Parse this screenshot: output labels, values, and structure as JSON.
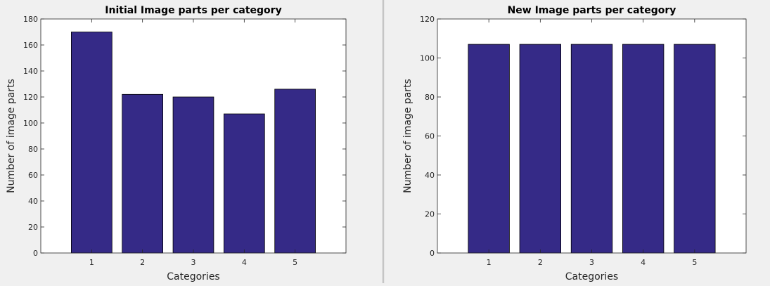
{
  "colors": {
    "bar_fill": "#352a87",
    "bar_stroke": "#000000",
    "plot_bg": "#ffffff",
    "figure_bg": "#f0f0f0"
  },
  "chart_data": [
    {
      "type": "bar",
      "title": "Initial Image parts per category",
      "xlabel": "Categories",
      "ylabel": "Number of image parts",
      "categories": [
        "1",
        "2",
        "3",
        "4",
        "5"
      ],
      "values": [
        170,
        122,
        120,
        107,
        126
      ],
      "ylim": [
        0,
        180
      ],
      "yticks": [
        0,
        20,
        40,
        60,
        80,
        100,
        120,
        140,
        160,
        180
      ],
      "grid": false,
      "legend": "none"
    },
    {
      "type": "bar",
      "title": "New Image parts per category",
      "xlabel": "Categories",
      "ylabel": "Number of image parts",
      "categories": [
        "1",
        "2",
        "3",
        "4",
        "5"
      ],
      "values": [
        107,
        107,
        107,
        107,
        107
      ],
      "ylim": [
        0,
        120
      ],
      "yticks": [
        0,
        20,
        40,
        60,
        80,
        100,
        120
      ],
      "grid": false,
      "legend": "none"
    }
  ]
}
